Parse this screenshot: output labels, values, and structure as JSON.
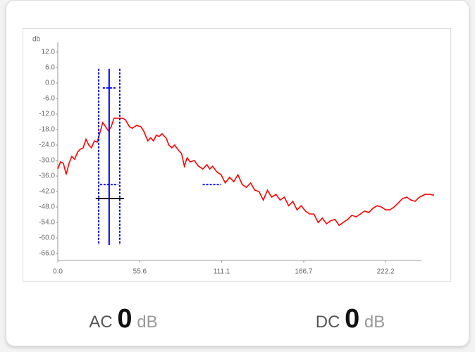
{
  "chart_data": {
    "type": "line",
    "y_label": "db",
    "xlim": [
      0,
      257
    ],
    "ylim": [
      -68.7,
      15.8
    ],
    "xticks": [
      {
        "value": 0,
        "label": "0.0"
      },
      55.6,
      111.1,
      166.7,
      222.2
    ],
    "yticks": [
      {
        "value": 12,
        "label": "12.0"
      },
      {
        "value": 6,
        "label": "6.0"
      },
      {
        "value": 0,
        "label": "0.0"
      },
      {
        "value": -6,
        "label": "-6.0"
      },
      {
        "value": -12,
        "label": "-12.0"
      },
      {
        "value": -18,
        "label": "-18.0"
      },
      {
        "value": -24,
        "label": "-24.0"
      },
      {
        "value": -30,
        "label": "-30.0"
      },
      {
        "value": -36,
        "label": "-36.0"
      },
      {
        "value": -42,
        "label": "-42.0"
      },
      {
        "value": -48,
        "label": "-48.0"
      },
      {
        "value": -54,
        "label": "-54.0"
      },
      {
        "value": -60,
        "label": "-60.0"
      },
      {
        "value": -66,
        "label": "-66.0"
      }
    ],
    "grid": false,
    "color": "#ff0000",
    "x": [
      0,
      1.9,
      3.8,
      5.7,
      7.6,
      9.5,
      11.4,
      13.4,
      15.3,
      17.2,
      19.1,
      21.0,
      22.9,
      24.8,
      26.7,
      28.6,
      30.5,
      32.4,
      34.3,
      36.2,
      38.1,
      41.0,
      43.9,
      45.8,
      48.6,
      50.5,
      53.4,
      56.3,
      58.2,
      61.0,
      62.9,
      64.8,
      66.8,
      68.7,
      70.6,
      73.4,
      75.3,
      77.3,
      79.2,
      82.0,
      83.9,
      85.8,
      87.7,
      89.6,
      92.5,
      95.4,
      98.3,
      101.1,
      103.0,
      104.9,
      107.8,
      110.7,
      113.5,
      116.4,
      119.3,
      122.1,
      125.0,
      127.8,
      130.7,
      133.6,
      136.4,
      139.3,
      142.1,
      145.0,
      147.9,
      150.7,
      153.6,
      156.5,
      159.3,
      162.2,
      165.0,
      167.9,
      170.7,
      173.6,
      176.5,
      179.3,
      182.2,
      185.0,
      187.9,
      190.7,
      193.6,
      196.5,
      199.3,
      202.2,
      205.1,
      207.9,
      210.8,
      213.6,
      216.5,
      219.4,
      222.2,
      225.1,
      227.9,
      230.8,
      233.7,
      236.5,
      239.4,
      242.2,
      245.1,
      248.9,
      251.8,
      255.1
    ],
    "values": [
      -33.3,
      -30.5,
      -31.1,
      -35.4,
      -31.1,
      -28.4,
      -29.5,
      -26.7,
      -25.6,
      -25.1,
      -21.8,
      -24.0,
      -25.1,
      -22.4,
      -22.9,
      -19.1,
      -15.3,
      -16.9,
      -18.5,
      -16.9,
      -13.6,
      -13.6,
      -13.6,
      -14.2,
      -16.9,
      -17.5,
      -16.4,
      -16.9,
      -18.5,
      -22.4,
      -21.2,
      -22.4,
      -20.2,
      -20.7,
      -19.6,
      -21.3,
      -24.0,
      -25.1,
      -24.0,
      -26.2,
      -27.3,
      -32.2,
      -28.9,
      -30.5,
      -30.0,
      -32.2,
      -33.3,
      -31.6,
      -33.3,
      -32.2,
      -34.4,
      -35.5,
      -38.7,
      -36.5,
      -38.2,
      -35.5,
      -39.3,
      -40.4,
      -38.7,
      -41.5,
      -42.0,
      -45.3,
      -41.5,
      -44.2,
      -43.1,
      -45.3,
      -44.2,
      -47.5,
      -45.8,
      -49.1,
      -47.5,
      -49.6,
      -50.7,
      -50.7,
      -54.0,
      -52.3,
      -54.5,
      -53.3,
      -52.8,
      -55.1,
      -53.9,
      -52.8,
      -51.2,
      -51.8,
      -50.7,
      -49.6,
      -50.1,
      -48.5,
      -47.5,
      -48.0,
      -49.1,
      -49.1,
      -48.0,
      -46.4,
      -44.7,
      -44.2,
      -45.3,
      -45.8,
      -44.2,
      -43.1,
      -43.1,
      -43.4
    ],
    "markers": [
      {
        "kind": "vline",
        "style": "solid",
        "color": "#0000ff",
        "x": 34.8,
        "y": [
          5.5,
          -62.7
        ]
      },
      {
        "kind": "vline",
        "style": "dashed",
        "color": "#0000ff",
        "x": 27.7,
        "y": [
          5.5,
          -62.7
        ]
      },
      {
        "kind": "vline",
        "style": "dashed",
        "color": "#0000ff",
        "x": 42.0,
        "y": [
          5.5,
          -62.7
        ]
      },
      {
        "kind": "hline",
        "style": "dashed",
        "color": "#0000ff",
        "y": -1.9,
        "x": [
          30.5,
          40.1
        ]
      },
      {
        "kind": "hline",
        "style": "dashed",
        "color": "#0000ff",
        "y": -39.3,
        "x": [
          28.6,
          41.0
        ]
      },
      {
        "kind": "hline",
        "style": "dashed",
        "color": "#0000ff",
        "y": -39.3,
        "x": [
          98.2,
          110.7
        ]
      },
      {
        "kind": "hline",
        "style": "solid",
        "color": "#000000",
        "y": -44.7,
        "x": [
          25.7,
          44.8
        ]
      }
    ]
  },
  "readouts": [
    {
      "label": "AC",
      "value": 0,
      "unit": "dB"
    },
    {
      "label": "DC",
      "value": 0,
      "unit": "dB"
    }
  ]
}
